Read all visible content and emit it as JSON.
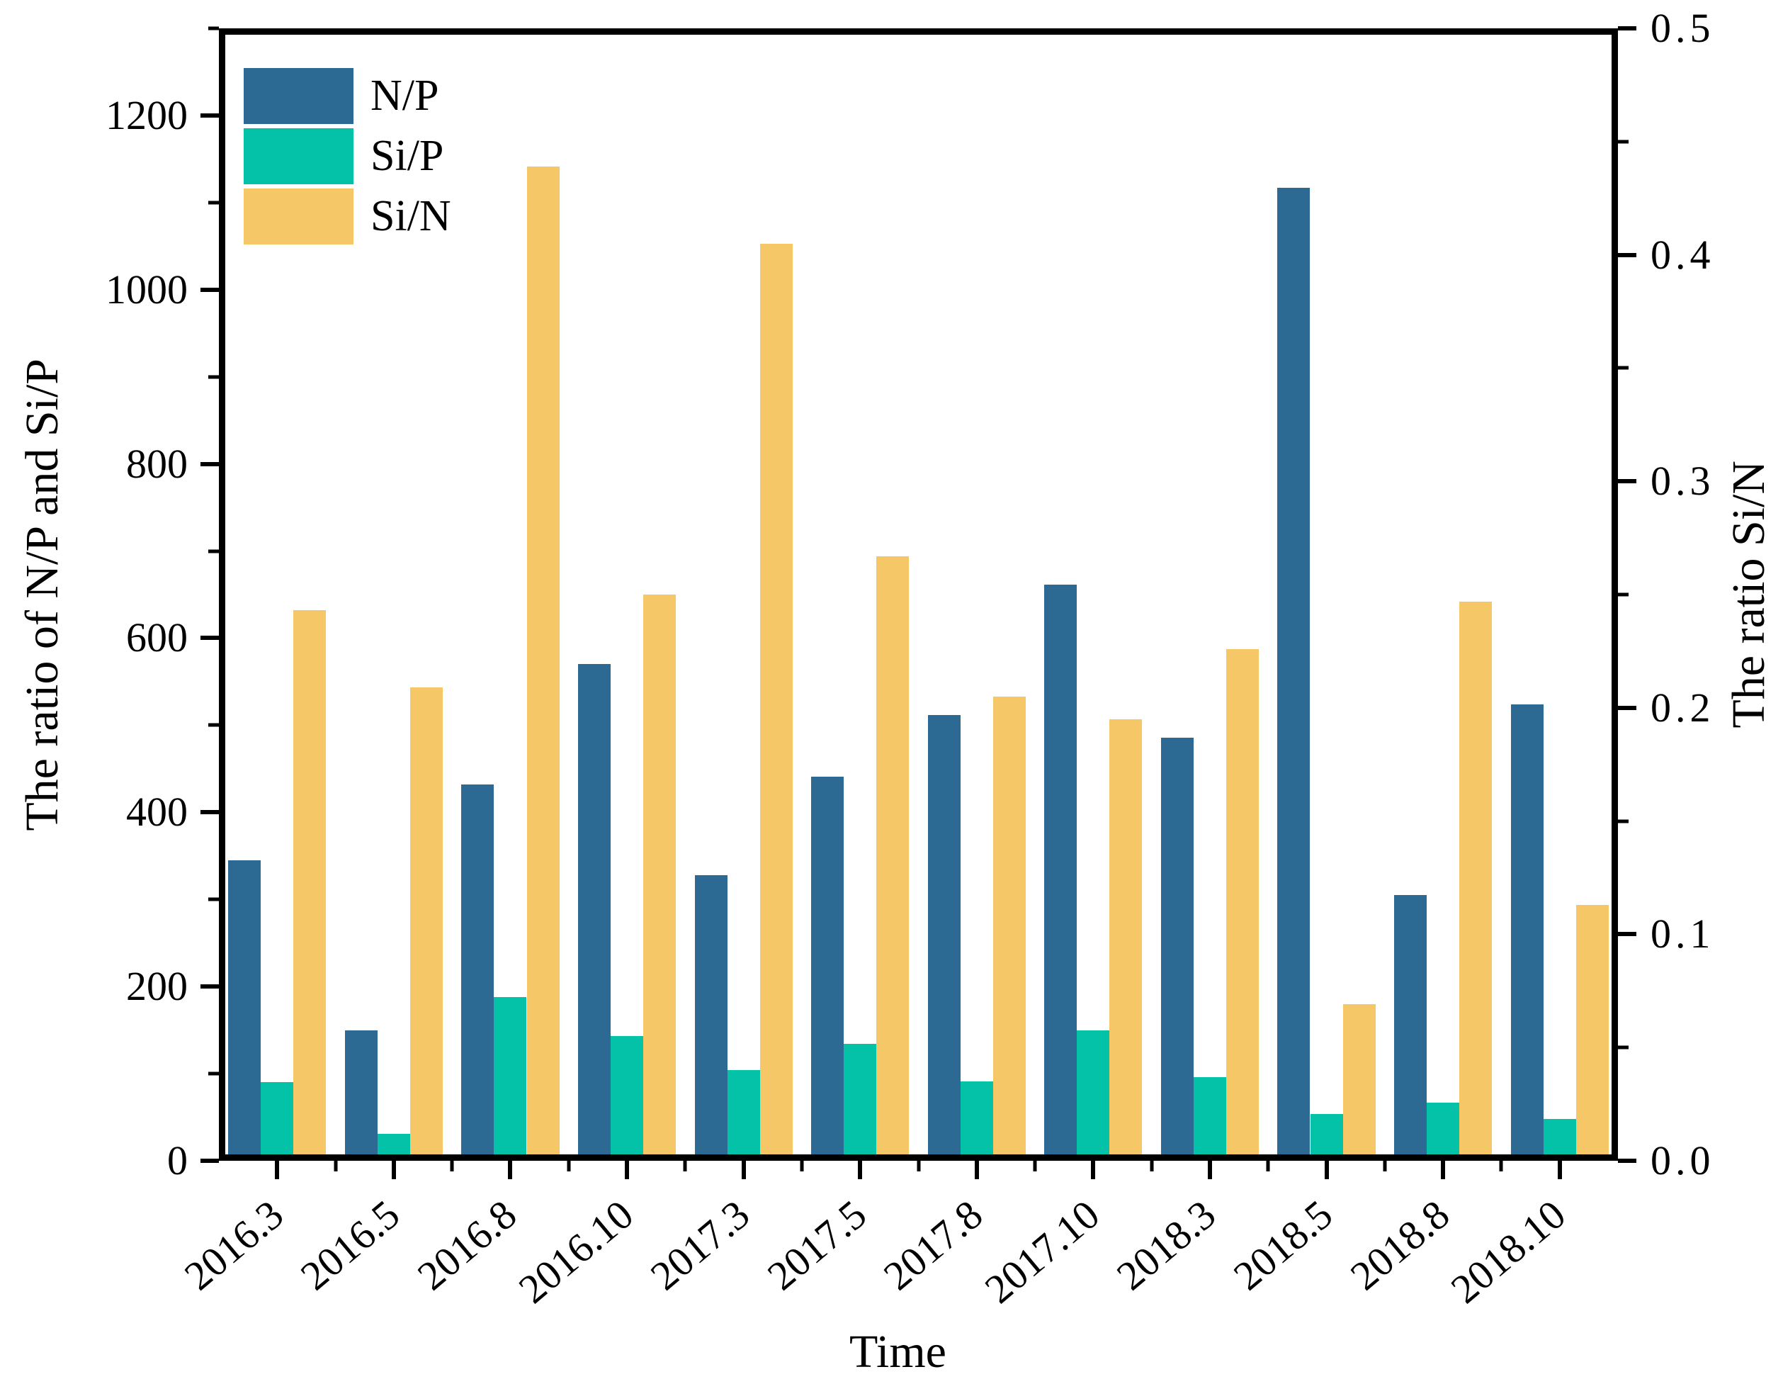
{
  "chart_data": {
    "type": "bar",
    "title": "",
    "xlabel": "Time",
    "ylabel_left": "The ratio of N/P and Si/P",
    "ylabel_right": "The ratio Si/N",
    "categories": [
      "2016.3",
      "2016.5",
      "2016.8",
      "2016.10",
      "2017.3",
      "2017.5",
      "2017.8",
      "2017.10",
      "2018.3",
      "2018.5",
      "2018.8",
      "2018.10"
    ],
    "series": [
      {
        "name": "N/P",
        "axis": "left",
        "color": "#2C6A94",
        "values": [
          345,
          150,
          432,
          570,
          328,
          441,
          512,
          661,
          486,
          1117,
          305,
          524
        ]
      },
      {
        "name": "Si/P",
        "axis": "left",
        "color": "#04C2A7",
        "values": [
          90,
          31,
          188,
          143,
          104,
          134,
          91,
          150,
          96,
          54,
          67,
          48
        ]
      },
      {
        "name": "Si/N",
        "axis": "right",
        "color": "#F5C767",
        "values": [
          0.243,
          0.209,
          0.439,
          0.25,
          0.405,
          0.267,
          0.205,
          0.195,
          0.226,
          0.069,
          0.247,
          0.113
        ]
      }
    ],
    "axes": {
      "left": {
        "min": 0,
        "max": 1300,
        "majors": [
          0,
          200,
          400,
          600,
          800,
          1000,
          1200
        ],
        "minors": [
          100,
          300,
          500,
          700,
          900,
          1100,
          1300
        ],
        "tick_labels": [
          "0",
          "200",
          "400",
          "600",
          "800",
          "1000",
          "1200"
        ]
      },
      "right": {
        "min": 0,
        "max": 0.5,
        "majors": [
          0,
          0.1,
          0.2,
          0.3,
          0.4,
          0.5
        ],
        "minors": [
          0.05,
          0.15,
          0.25,
          0.35,
          0.45
        ],
        "tick_labels": [
          "0.0",
          "0.1",
          "0.2",
          "0.3",
          "0.4",
          "0.5"
        ]
      }
    },
    "legend": {
      "position": "top-left",
      "entries": [
        {
          "label": "N/P",
          "color": "#2C6A94"
        },
        {
          "label": "Si/P",
          "color": "#04C2A7"
        },
        {
          "label": "Si/N",
          "color": "#F5C767"
        }
      ]
    },
    "grid": false,
    "frame_color": "#000000",
    "background": "#ffffff"
  }
}
